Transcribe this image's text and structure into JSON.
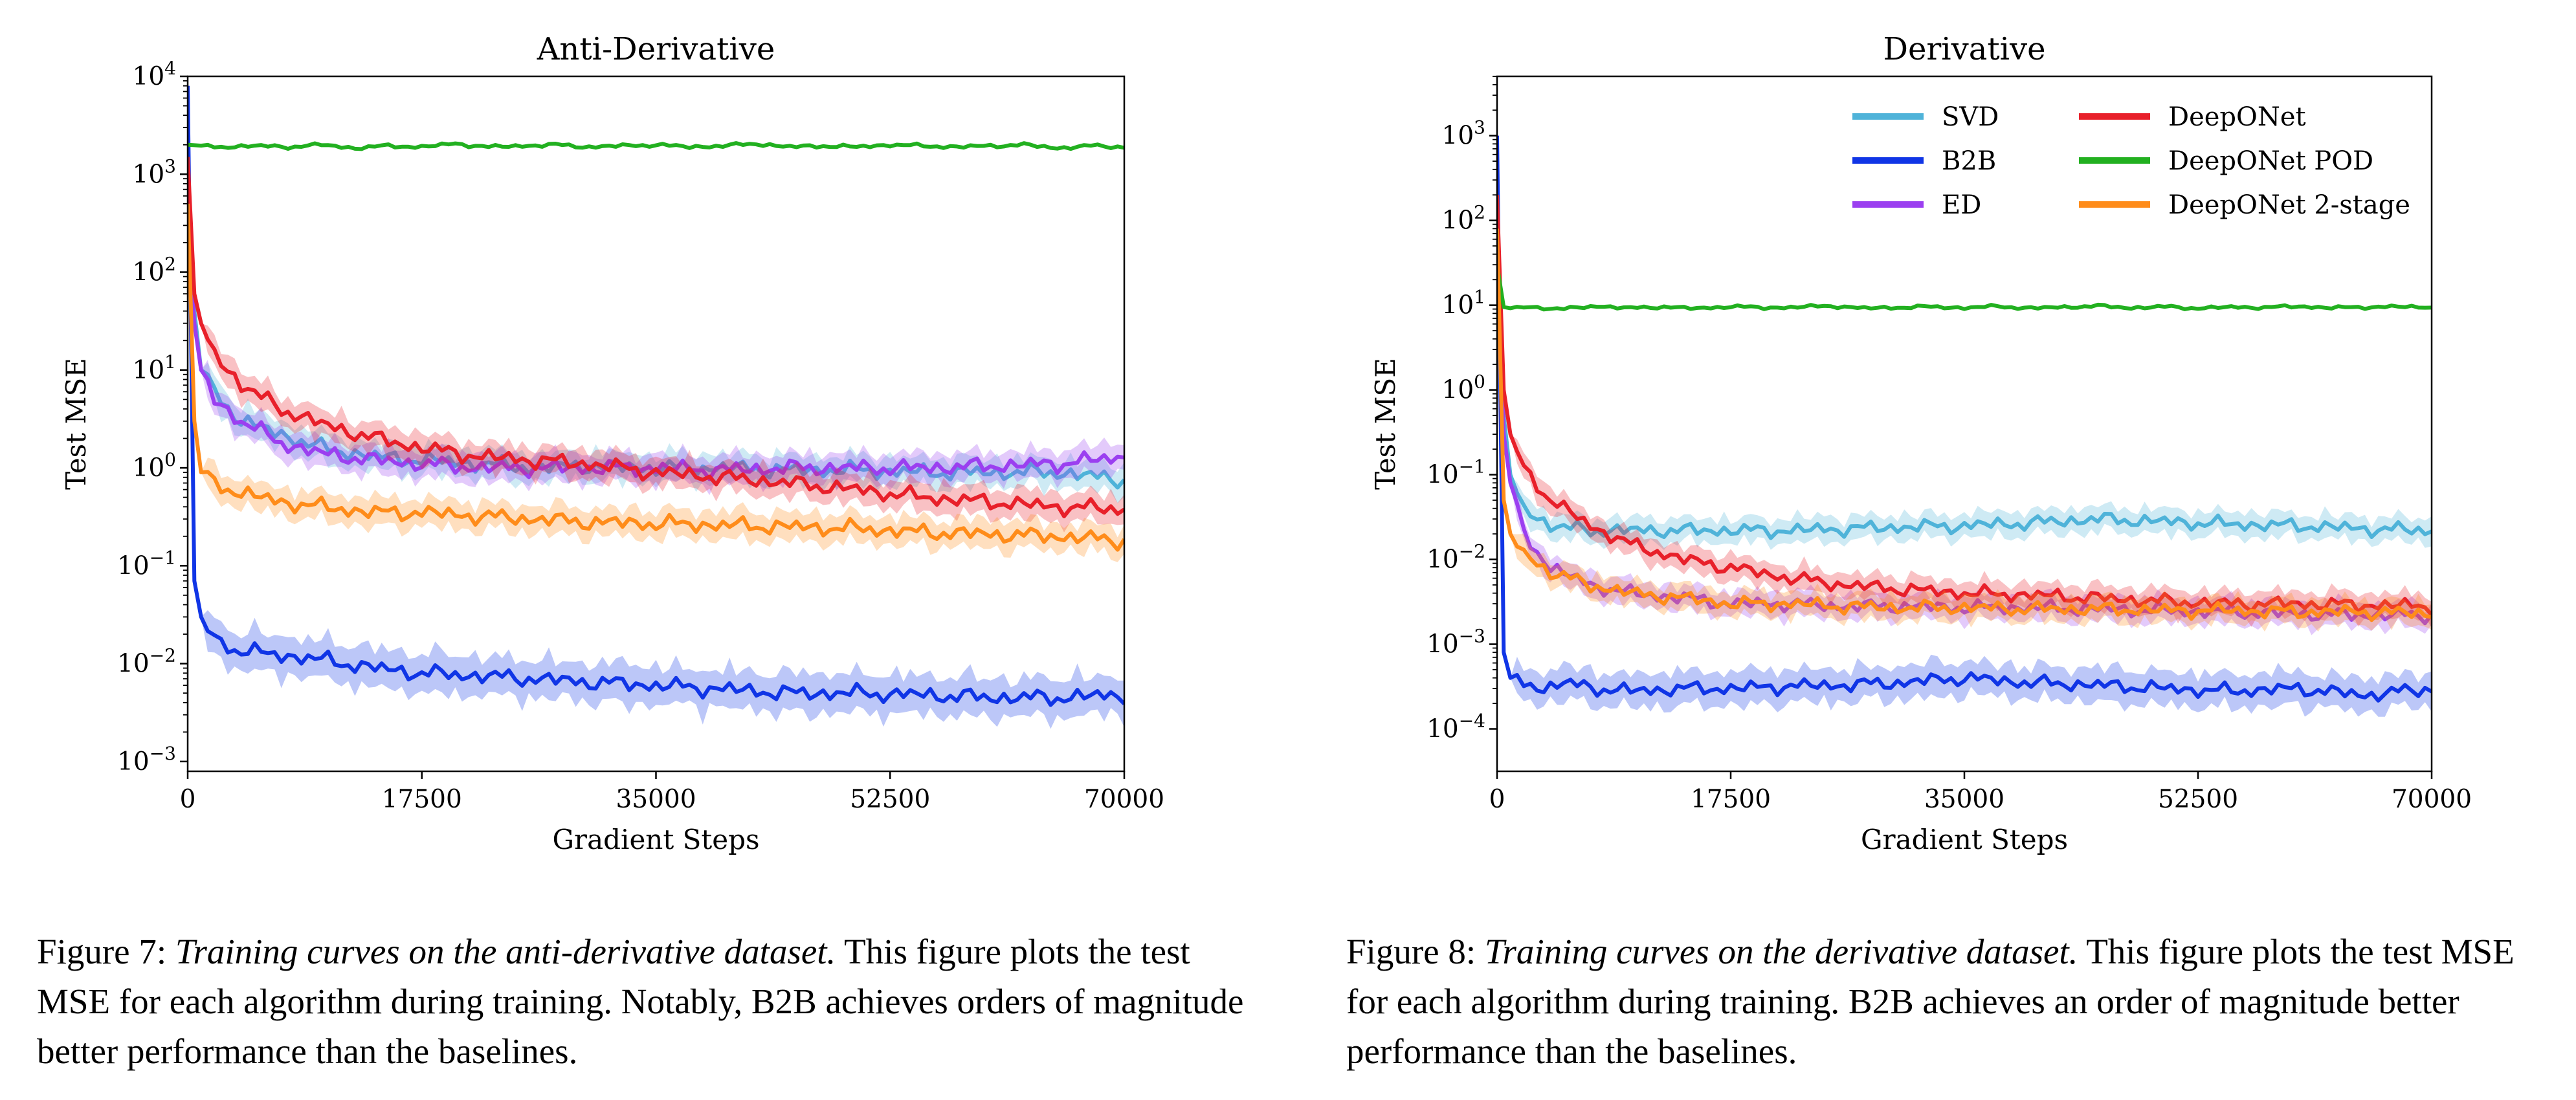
{
  "chart_data": [
    {
      "type": "line",
      "title": "Anti-Derivative",
      "xlabel": "Gradient Steps",
      "ylabel": "Test MSE",
      "xlim": [
        0,
        70000
      ],
      "ylim_log10": [
        -3.1,
        4
      ],
      "yscale": "log",
      "grid": false,
      "legend": "none",
      "x_ticks": [
        "0",
        "17500",
        "35000",
        "52500",
        "70000"
      ],
      "y_ticks": [
        "10^-3",
        "10^-2",
        "10^-1",
        "10^0",
        "10^1",
        "10^2",
        "10^3",
        "10^4"
      ],
      "series": [
        {
          "name": "SVD",
          "color": "#4fb3d9",
          "x": [
            0,
            500,
            1000,
            2000,
            4000,
            7000,
            10000,
            14000,
            17500,
            22000,
            26000,
            30000,
            35000,
            40000,
            45000,
            50000,
            55000,
            60000,
            65000,
            70000
          ],
          "values": [
            300,
            40,
            10,
            6,
            3,
            2.2,
            1.6,
            1.3,
            1.2,
            1.1,
            1.0,
            1.05,
            1.0,
            1.0,
            0.95,
            0.95,
            0.9,
            0.9,
            0.9,
            0.75
          ]
        },
        {
          "name": "B2B",
          "color": "#1035e6",
          "x": [
            0,
            500,
            1000,
            2000,
            3500,
            5000,
            7500,
            10000,
            14000,
            17500,
            22000,
            26000,
            30000,
            35000,
            40000,
            45000,
            50000,
            55000,
            60000,
            65000,
            70000
          ],
          "values": [
            8000,
            0.07,
            0.03,
            0.018,
            0.014,
            0.013,
            0.012,
            0.011,
            0.009,
            0.008,
            0.0075,
            0.007,
            0.0065,
            0.006,
            0.0055,
            0.005,
            0.005,
            0.0048,
            0.0045,
            0.0045,
            0.0048
          ]
        },
        {
          "name": "ED",
          "color": "#9b3ff0",
          "x": [
            0,
            500,
            1000,
            2000,
            4000,
            7000,
            10000,
            14000,
            17500,
            22000,
            26000,
            30000,
            35000,
            40000,
            45000,
            50000,
            55000,
            60000,
            65000,
            70000
          ],
          "values": [
            300,
            30,
            10,
            5,
            3,
            1.8,
            1.4,
            1.2,
            1.1,
            1.0,
            1.0,
            1.0,
            1.0,
            0.95,
            1.0,
            1.0,
            1.0,
            1.05,
            1.1,
            1.3
          ]
        },
        {
          "name": "DeepONet",
          "color": "#e8202a",
          "x": [
            0,
            500,
            1000,
            2000,
            4000,
            7000,
            10000,
            14000,
            17500,
            22000,
            26000,
            30000,
            35000,
            40000,
            45000,
            50000,
            55000,
            60000,
            65000,
            70000
          ],
          "values": [
            1500,
            60,
            30,
            15,
            7,
            4,
            2.8,
            2.0,
            1.6,
            1.3,
            1.2,
            1.1,
            0.9,
            0.8,
            0.7,
            0.6,
            0.5,
            0.45,
            0.4,
            0.38
          ]
        },
        {
          "name": "DeepONet POD",
          "color": "#22b020",
          "x": [
            0,
            2500,
            5000,
            7500,
            10000,
            12500,
            15000,
            17500,
            20000,
            22500,
            25000,
            27500,
            30000,
            32500,
            35000,
            37500,
            40000,
            42500,
            45000,
            47500,
            50000,
            52500,
            55000,
            57500,
            60000,
            62500,
            65000,
            67500,
            70000
          ],
          "values": [
            2000,
            1900,
            1950,
            1900,
            2000,
            1850,
            1950,
            1900,
            2050,
            1900,
            1950,
            2000,
            1900,
            1950,
            2000,
            1900,
            1950,
            2050,
            1900,
            1950,
            1900,
            2000,
            1950,
            1900,
            1950,
            2000,
            1850,
            1950,
            1900
          ]
        },
        {
          "name": "DeepONet 2-stage",
          "color": "#ff8c1a",
          "x": [
            0,
            500,
            1000,
            2000,
            4000,
            7000,
            10000,
            14000,
            17500,
            22000,
            26000,
            30000,
            35000,
            40000,
            45000,
            50000,
            55000,
            60000,
            65000,
            70000
          ],
          "values": [
            500,
            3,
            0.9,
            0.7,
            0.55,
            0.45,
            0.4,
            0.35,
            0.35,
            0.32,
            0.3,
            0.28,
            0.27,
            0.26,
            0.25,
            0.24,
            0.22,
            0.21,
            0.2,
            0.18
          ]
        }
      ]
    },
    {
      "type": "line",
      "title": "Derivative",
      "xlabel": "Gradient Steps",
      "ylabel": "Test MSE",
      "xlim": [
        0,
        70000
      ],
      "ylim_log10": [
        -4.5,
        3.7
      ],
      "yscale": "log",
      "grid": false,
      "legend": "top-right",
      "x_ticks": [
        "0",
        "17500",
        "35000",
        "52500",
        "70000"
      ],
      "y_ticks": [
        "10^-4",
        "10^-3",
        "10^-2",
        "10^-1",
        "10^0",
        "10^1",
        "10^2",
        "10^3"
      ],
      "series": [
        {
          "name": "SVD",
          "color": "#4fb3d9",
          "x": [
            0,
            500,
            1000,
            2000,
            4000,
            7000,
            10000,
            14000,
            17500,
            22000,
            26000,
            30000,
            35000,
            40000,
            45000,
            50000,
            55000,
            60000,
            65000,
            70000
          ],
          "values": [
            100,
            0.5,
            0.1,
            0.04,
            0.025,
            0.022,
            0.022,
            0.022,
            0.022,
            0.022,
            0.023,
            0.024,
            0.025,
            0.027,
            0.03,
            0.028,
            0.026,
            0.025,
            0.023,
            0.022
          ]
        },
        {
          "name": "B2B",
          "color": "#1035e6",
          "x": [
            0,
            500,
            1000,
            2000,
            3500,
            5000,
            7500,
            10000,
            14000,
            17500,
            22000,
            26000,
            30000,
            35000,
            40000,
            45000,
            50000,
            55000,
            60000,
            65000,
            70000
          ],
          "values": [
            1000,
            0.0008,
            0.0004,
            0.00035,
            0.0003,
            0.00035,
            0.0003,
            0.00028,
            0.0003,
            0.0003,
            0.00032,
            0.00033,
            0.00035,
            0.0004,
            0.00035,
            0.00033,
            0.0003,
            0.00028,
            0.0003,
            0.00025,
            0.0003
          ]
        },
        {
          "name": "ED",
          "color": "#9b3ff0",
          "x": [
            0,
            500,
            1000,
            2000,
            4000,
            7000,
            10000,
            14000,
            17500,
            22000,
            26000,
            30000,
            35000,
            40000,
            45000,
            50000,
            55000,
            60000,
            65000,
            70000
          ],
          "values": [
            100,
            0.3,
            0.08,
            0.02,
            0.008,
            0.005,
            0.004,
            0.0035,
            0.003,
            0.003,
            0.0028,
            0.0028,
            0.0027,
            0.0027,
            0.0026,
            0.0025,
            0.0024,
            0.0023,
            0.0022,
            0.0022
          ]
        },
        {
          "name": "DeepONet",
          "color": "#e8202a",
          "x": [
            0,
            500,
            1000,
            2000,
            4000,
            7000,
            10000,
            14000,
            17500,
            22000,
            26000,
            30000,
            35000,
            40000,
            45000,
            50000,
            55000,
            60000,
            65000,
            70000
          ],
          "values": [
            200,
            1.0,
            0.3,
            0.12,
            0.05,
            0.025,
            0.015,
            0.01,
            0.008,
            0.006,
            0.005,
            0.0045,
            0.004,
            0.0038,
            0.0035,
            0.0032,
            0.003,
            0.003,
            0.0029,
            0.0028
          ]
        },
        {
          "name": "DeepONet POD",
          "color": "#22b020",
          "x": [
            0,
            500,
            1000,
            2500,
            5000,
            7500,
            10000,
            12500,
            15000,
            17500,
            20000,
            22500,
            25000,
            27500,
            30000,
            32500,
            35000,
            37500,
            40000,
            42500,
            45000,
            47500,
            50000,
            52500,
            55000,
            57500,
            60000,
            62500,
            65000,
            67500,
            70000
          ],
          "values": [
            30,
            9.5,
            9.2,
            9.5,
            9.0,
            9.8,
            9.2,
            9.6,
            9.1,
            9.7,
            9.3,
            9.5,
            9.8,
            9.2,
            9.4,
            9.6,
            9.3,
            9.7,
            9.2,
            9.5,
            9.8,
            9.3,
            9.6,
            9.2,
            9.5,
            9.4,
            9.7,
            9.3,
            9.5,
            9.6,
            9.4
          ]
        },
        {
          "name": "DeepONet 2-stage",
          "color": "#ff8c1a",
          "x": [
            0,
            500,
            1000,
            2000,
            4000,
            7000,
            10000,
            14000,
            17500,
            22000,
            26000,
            30000,
            35000,
            40000,
            45000,
            50000,
            55000,
            60000,
            65000,
            70000
          ],
          "values": [
            80,
            0.05,
            0.02,
            0.012,
            0.007,
            0.005,
            0.004,
            0.0035,
            0.003,
            0.003,
            0.0028,
            0.0027,
            0.0027,
            0.0026,
            0.0026,
            0.0025,
            0.0025,
            0.0024,
            0.0024,
            0.0023
          ]
        }
      ]
    }
  ],
  "captions": [
    {
      "label": "Figure 7:",
      "title": "Training curves on the anti-derivative dataset.",
      "body": "This figure plots the test MSE for each algorithm during training. Notably, B2B achieves orders of magnitude better performance than the baselines."
    },
    {
      "label": "Figure 8:",
      "title": "Training curves on the derivative dataset.",
      "body": "This figure plots the test MSE for each algorithm during training. B2B achieves an order of magnitude better performance than the baselines."
    }
  ]
}
